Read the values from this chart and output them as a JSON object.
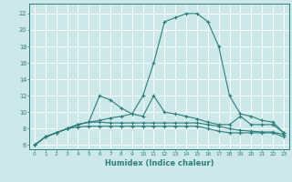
{
  "xlabel": "Humidex (Indice chaleur)",
  "background_color": "#cce8e8",
  "grid_color": "#ffffff",
  "line_color": "#2d7d7d",
  "xlim": [
    -0.5,
    23.5
  ],
  "ylim": [
    5.5,
    23.2
  ],
  "xticks": [
    0,
    1,
    2,
    3,
    4,
    5,
    6,
    7,
    8,
    9,
    10,
    11,
    12,
    13,
    14,
    15,
    16,
    17,
    18,
    19,
    20,
    21,
    22,
    23
  ],
  "yticks": [
    6,
    8,
    10,
    12,
    14,
    16,
    18,
    20,
    22
  ],
  "curves": [
    [
      6.0,
      7.0,
      7.5,
      8.0,
      8.5,
      8.8,
      9.0,
      9.3,
      9.5,
      9.8,
      12.0,
      16.0,
      21.0,
      21.5,
      22.0,
      22.0,
      21.0,
      18.0,
      12.0,
      9.8,
      9.5,
      9.0,
      8.8,
      7.5
    ],
    [
      6.0,
      7.0,
      7.5,
      8.0,
      8.5,
      8.8,
      12.0,
      11.5,
      10.5,
      9.8,
      9.5,
      12.0,
      10.0,
      9.8,
      9.5,
      9.2,
      8.8,
      8.5,
      8.5,
      9.5,
      8.5,
      8.5,
      8.5,
      7.5
    ],
    [
      6.0,
      7.0,
      7.5,
      8.0,
      8.5,
      8.8,
      8.8,
      8.7,
      8.7,
      8.7,
      8.7,
      8.7,
      8.7,
      8.7,
      8.7,
      8.7,
      8.5,
      8.3,
      8.0,
      7.8,
      7.7,
      7.6,
      7.6,
      7.3
    ],
    [
      6.0,
      7.0,
      7.5,
      8.0,
      8.2,
      8.3,
      8.3,
      8.3,
      8.3,
      8.3,
      8.3,
      8.3,
      8.3,
      8.3,
      8.3,
      8.3,
      8.0,
      7.7,
      7.5,
      7.5,
      7.5,
      7.5,
      7.5,
      7.0
    ]
  ]
}
